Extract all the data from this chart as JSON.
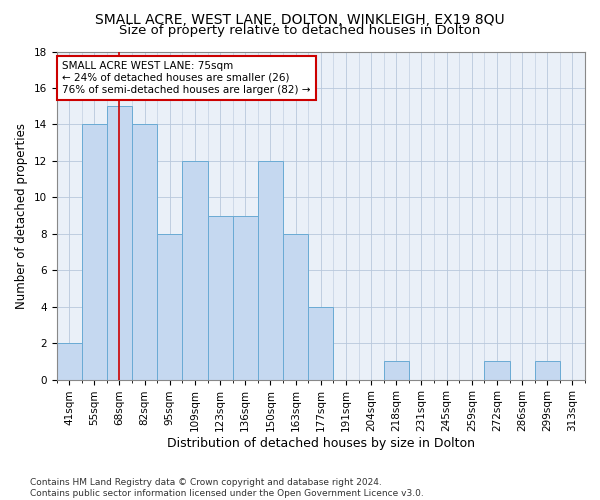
{
  "title": "SMALL ACRE, WEST LANE, DOLTON, WINKLEIGH, EX19 8QU",
  "subtitle": "Size of property relative to detached houses in Dolton",
  "xlabel": "Distribution of detached houses by size in Dolton",
  "ylabel": "Number of detached properties",
  "categories": [
    "41sqm",
    "55sqm",
    "68sqm",
    "82sqm",
    "95sqm",
    "109sqm",
    "123sqm",
    "136sqm",
    "150sqm",
    "163sqm",
    "177sqm",
    "191sqm",
    "204sqm",
    "218sqm",
    "231sqm",
    "245sqm",
    "259sqm",
    "272sqm",
    "286sqm",
    "299sqm",
    "313sqm"
  ],
  "values": [
    2,
    14,
    15,
    14,
    8,
    12,
    9,
    9,
    12,
    8,
    4,
    0,
    0,
    1,
    0,
    0,
    0,
    1,
    0,
    1,
    0
  ],
  "bar_color": "#c5d8f0",
  "bar_edge_color": "#6aaad4",
  "red_line_x": 2.0,
  "annotation_text": "SMALL ACRE WEST LANE: 75sqm\n← 24% of detached houses are smaller (26)\n76% of semi-detached houses are larger (82) →",
  "annotation_box_color": "#ffffff",
  "annotation_box_edge_color": "#cc0000",
  "ylim": [
    0,
    18
  ],
  "yticks": [
    0,
    2,
    4,
    6,
    8,
    10,
    12,
    14,
    16,
    18
  ],
  "footer": "Contains HM Land Registry data © Crown copyright and database right 2024.\nContains public sector information licensed under the Open Government Licence v3.0.",
  "title_fontsize": 10,
  "subtitle_fontsize": 9.5,
  "xlabel_fontsize": 9,
  "ylabel_fontsize": 8.5,
  "tick_fontsize": 7.5,
  "annotation_fontsize": 7.5,
  "footer_fontsize": 6.5
}
